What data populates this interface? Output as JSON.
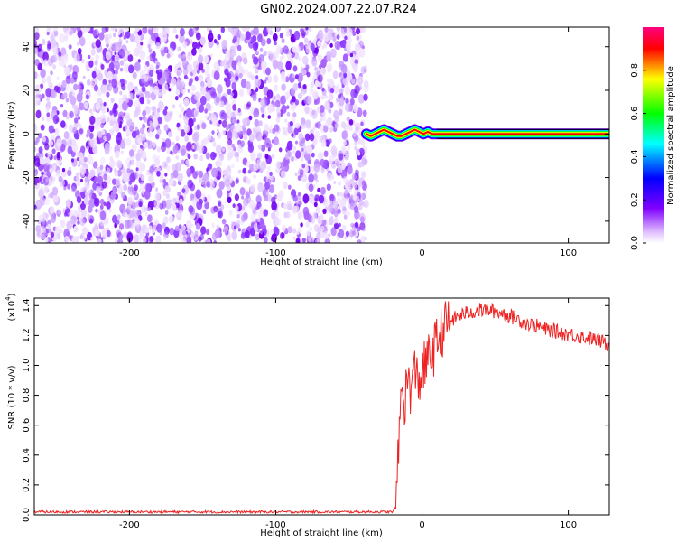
{
  "title": "GN02.2024.007.22.07.R24",
  "chart_data": [
    {
      "type": "heatmap",
      "title": "GN02.2024.007.22.07.R24",
      "xlabel": "Height of straight line (km)",
      "ylabel": "Frequency (Hz)",
      "xlim": [
        -265,
        128
      ],
      "ylim": [
        -50,
        49
      ],
      "xticks": [
        -200,
        -100,
        0,
        100
      ],
      "xtick_labels": [
        "-200",
        "-100",
        "0",
        "100"
      ],
      "yticks": [
        -40,
        -20,
        0,
        20,
        40
      ],
      "ytick_labels": [
        "-40",
        "-20",
        "0",
        "20",
        "40"
      ],
      "colorbar": {
        "label": "Normalized spectral amplitude",
        "range": [
          0.0,
          1.0
        ],
        "ticks": [
          0.0,
          0.2,
          0.4,
          0.6,
          0.8
        ],
        "tick_labels": [
          "0.0",
          "0.2",
          "0.4",
          "0.6",
          "0.8"
        ],
        "colormap": [
          "#ffffff",
          "#8000ff",
          "#0000ff",
          "#00ffff",
          "#00ff00",
          "#ffff00",
          "#ff0000",
          "#ff0080"
        ]
      },
      "regions": [
        {
          "name": "noise",
          "x_range": [
            -265,
            -38
          ],
          "freq_range": [
            -50,
            49
          ],
          "amplitude_range": [
            0.0,
            0.15
          ]
        },
        {
          "name": "carrier-tone",
          "x_range": [
            -38,
            128
          ],
          "freq_center": 0,
          "amplitude": 0.85
        }
      ],
      "carrier_ridge": {
        "x": [
          -38,
          -35,
          -32,
          -29,
          -26,
          -23,
          -20,
          -17,
          -14,
          -11,
          -8,
          -5,
          -2,
          1,
          4,
          7,
          10,
          20,
          60,
          128
        ],
        "freq": [
          0,
          -1,
          0,
          1,
          2,
          1,
          0,
          -1,
          -1,
          0,
          1,
          2,
          1,
          0,
          1,
          0,
          0,
          0,
          0,
          0
        ]
      },
      "grid": false
    },
    {
      "type": "line",
      "xlabel": "Height of straight line (km)",
      "ylabel": "SNR (10 * v/v)",
      "y_multiplier": "(x10",
      "y_multiplier_exp": "4",
      "y_multiplier_close": ")",
      "xlim": [
        -265,
        128
      ],
      "ylim": [
        0,
        1.45
      ],
      "xticks": [
        -200,
        -100,
        0,
        100
      ],
      "xtick_labels": [
        "-200",
        "-100",
        "0",
        "100"
      ],
      "yticks": [
        0.0,
        0.2,
        0.4,
        0.6,
        0.8,
        1.0,
        1.2,
        1.4
      ],
      "ytick_labels": [
        "0.0",
        "0.2",
        "0.4",
        "0.6",
        "0.8",
        "1.0",
        "1.2",
        "1.4"
      ],
      "series": [
        {
          "color": "#ee2222",
          "x": [
            -265,
            -200,
            -150,
            -100,
            -50,
            -20,
            -18,
            -17,
            -16,
            -15,
            -14,
            -13,
            -12,
            -10,
            -8,
            -5,
            -2,
            0,
            2,
            5,
            8,
            10,
            12,
            15,
            18,
            20,
            25,
            30,
            35,
            40,
            45,
            50,
            55,
            60,
            65,
            70,
            75,
            80,
            85,
            90,
            95,
            100,
            105,
            110,
            115,
            120,
            125,
            128
          ],
          "y": [
            0.02,
            0.02,
            0.02,
            0.02,
            0.02,
            0.02,
            0.05,
            0.2,
            0.45,
            0.7,
            0.8,
            0.85,
            0.75,
            0.9,
            0.85,
            0.95,
            0.9,
            0.95,
            1.0,
            1.05,
            1.1,
            1.15,
            1.2,
            1.25,
            1.28,
            1.3,
            1.33,
            1.35,
            1.36,
            1.37,
            1.37,
            1.36,
            1.35,
            1.33,
            1.31,
            1.29,
            1.27,
            1.26,
            1.24,
            1.23,
            1.22,
            1.21,
            1.2,
            1.19,
            1.18,
            1.17,
            1.15,
            1.13
          ]
        }
      ],
      "grid": false
    }
  ]
}
